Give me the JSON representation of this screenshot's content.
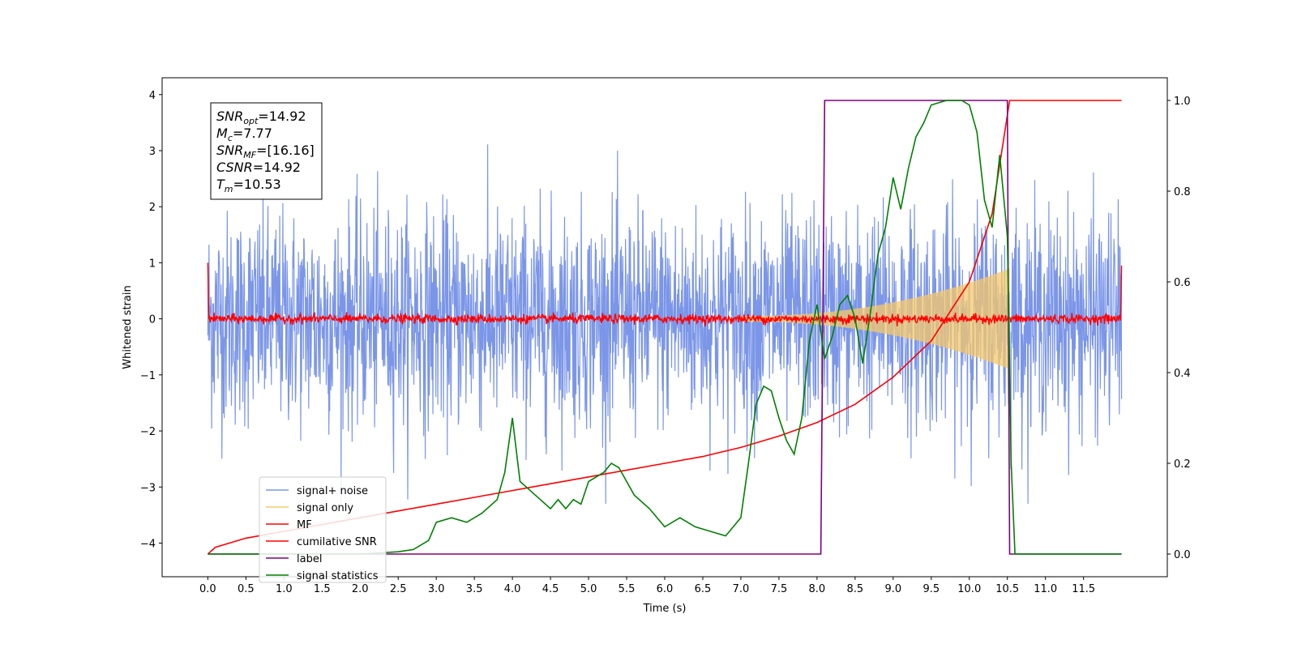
{
  "chart_data": {
    "type": "line",
    "xlabel": "Time (s)",
    "ylabel": "Whitened strain",
    "xlim": [
      -0.6,
      12.6
    ],
    "ylim_left": [
      -4.6,
      4.3
    ],
    "ylim_right": [
      -0.05,
      1.05
    ],
    "x_ticks": [
      "0.0",
      "0.5",
      "1.0",
      "1.5",
      "2.0",
      "2.5",
      "3.0",
      "3.5",
      "4.0",
      "4.5",
      "5.0",
      "5.5",
      "6.0",
      "6.5",
      "7.0",
      "7.5",
      "8.0",
      "8.5",
      "9.0",
      "9.5",
      "10.0",
      "10.5",
      "11.0",
      "11.5"
    ],
    "y_ticks_left": [
      "−4",
      "−3",
      "−2",
      "−1",
      "0",
      "1",
      "2",
      "3",
      "4"
    ],
    "y_ticks_right": [
      "0.0",
      "0.2",
      "0.4",
      "0.6",
      "0.8",
      "1.0"
    ],
    "legend_position": "lower-left",
    "info_box": [
      {
        "label": "SNR",
        "sub": "opt",
        "value": "=14.92"
      },
      {
        "label": "M",
        "sub": "c",
        "value": "=7.77"
      },
      {
        "label": "SNR",
        "sub": "MF",
        "value": "=[16.16]"
      },
      {
        "label": "CSNR",
        "sub": "",
        "value": "=14.92"
      },
      {
        "label": "T",
        "sub": "m",
        "value": "=10.53"
      }
    ],
    "series": [
      {
        "name": "signal+ noise",
        "color": "#7b96e8",
        "axis": "left",
        "description_values": {
          "x_range": [
            0,
            12
          ],
          "envelope": [
            -2.2,
            2.4
          ]
        }
      },
      {
        "name": "signal only",
        "color": "#f5c86b",
        "axis": "left",
        "chirp_end": 10.53,
        "max_amplitude": 0.85
      },
      {
        "name": "MF",
        "color": "#ff0000",
        "axis": "left",
        "noise_amplitude": 0.08
      },
      {
        "name": "cumilative SNR",
        "color": "#ff0000",
        "axis": "right",
        "x": [
          0.0,
          0.1,
          0.5,
          1.0,
          1.5,
          2.0,
          2.5,
          3.0,
          3.5,
          4.0,
          4.5,
          5.0,
          5.5,
          6.0,
          6.5,
          7.0,
          7.5,
          8.0,
          8.5,
          9.0,
          9.5,
          10.0,
          10.3,
          10.53,
          12.0
        ],
        "y": [
          0.0,
          0.015,
          0.035,
          0.05,
          0.065,
          0.08,
          0.095,
          0.11,
          0.125,
          0.14,
          0.155,
          0.17,
          0.185,
          0.2,
          0.215,
          0.235,
          0.26,
          0.29,
          0.33,
          0.39,
          0.47,
          0.6,
          0.75,
          1.0,
          1.0
        ]
      },
      {
        "name": "label",
        "color": "#800080",
        "axis": "right",
        "x": [
          0.0,
          8.05,
          8.1,
          10.5,
          10.53,
          12.0
        ],
        "y": [
          0.0,
          0.0,
          1.0,
          1.0,
          0.0,
          0.0
        ]
      },
      {
        "name": "signal statistics",
        "color": "#008000",
        "axis": "right",
        "x": [
          0.0,
          0.5,
          1.0,
          1.5,
          2.0,
          2.5,
          2.7,
          2.9,
          3.0,
          3.2,
          3.4,
          3.6,
          3.8,
          3.9,
          4.0,
          4.1,
          4.3,
          4.5,
          4.6,
          4.7,
          4.8,
          4.9,
          5.0,
          5.2,
          5.3,
          5.4,
          5.5,
          5.6,
          5.8,
          6.0,
          6.2,
          6.4,
          6.6,
          6.8,
          7.0,
          7.1,
          7.2,
          7.3,
          7.4,
          7.5,
          7.6,
          7.7,
          7.8,
          7.9,
          8.0,
          8.1,
          8.2,
          8.3,
          8.4,
          8.5,
          8.6,
          8.7,
          8.8,
          8.9,
          9.0,
          9.1,
          9.2,
          9.3,
          9.4,
          9.5,
          9.7,
          9.9,
          10.0,
          10.1,
          10.2,
          10.3,
          10.4,
          10.5,
          10.55,
          10.6,
          11.0,
          11.5,
          12.0
        ],
        "y": [
          0.0,
          0.0,
          0.0,
          0.0,
          0.0,
          0.005,
          0.01,
          0.03,
          0.07,
          0.08,
          0.07,
          0.09,
          0.12,
          0.18,
          0.3,
          0.16,
          0.13,
          0.1,
          0.12,
          0.1,
          0.12,
          0.11,
          0.16,
          0.18,
          0.2,
          0.19,
          0.16,
          0.13,
          0.1,
          0.06,
          0.08,
          0.06,
          0.05,
          0.04,
          0.08,
          0.2,
          0.33,
          0.37,
          0.36,
          0.3,
          0.25,
          0.22,
          0.3,
          0.47,
          0.55,
          0.43,
          0.48,
          0.55,
          0.57,
          0.52,
          0.42,
          0.53,
          0.66,
          0.72,
          0.83,
          0.76,
          0.85,
          0.92,
          0.95,
          0.99,
          1.0,
          1.0,
          0.99,
          0.93,
          0.78,
          0.72,
          0.88,
          0.7,
          0.2,
          0.0,
          0.0,
          0.0,
          0.0
        ]
      }
    ]
  }
}
